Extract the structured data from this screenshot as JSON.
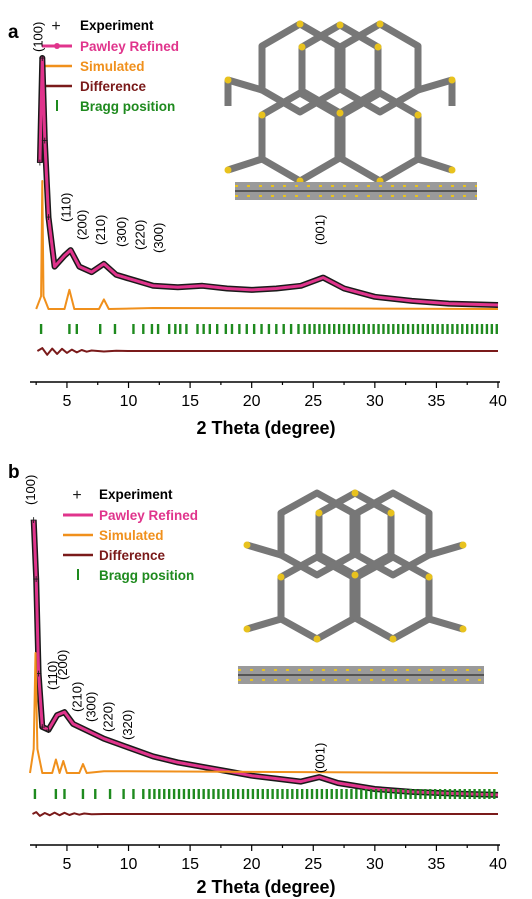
{
  "colors": {
    "experiment": "#1a1a1a",
    "pawley": "#e0348c",
    "simulated": "#f0901c",
    "difference": "#7a1a1a",
    "bragg": "#1e8a1e"
  },
  "legend": {
    "experiment": "Experiment",
    "pawley": "Pawley Refined",
    "simulated": "Simulated",
    "difference": "Difference",
    "bragg": "Bragg position"
  },
  "xlabel": "2 Theta (degree)",
  "chart_data": [
    {
      "panel": "a",
      "type": "line",
      "xlabel": "2 Theta (degree)",
      "xlim": [
        2,
        40
      ],
      "x_ticks": [
        "5",
        "10",
        "15",
        "20",
        "25",
        "30",
        "35",
        "40"
      ],
      "peak_labels": [
        "(100)",
        "(110)",
        "(200)",
        "(210)",
        "(300)",
        "(220)",
        "(300)",
        "(001)"
      ],
      "series": [
        {
          "name": "Experiment",
          "x": [
            2.8,
            3.0,
            3.2,
            3.5,
            4.0,
            4.8,
            5.3,
            6.0,
            7.0,
            8.0,
            9.0,
            10.5,
            12.0,
            14.0,
            16.0,
            18.0,
            20.0,
            22.0,
            24.0,
            25.8,
            27.5,
            30.0,
            33.0,
            36.0,
            40.0
          ],
          "y": [
            62,
            100,
            70,
            42,
            24,
            28,
            30,
            24,
            22,
            25,
            21,
            19,
            17,
            16.5,
            17,
            16,
            15.5,
            16,
            17,
            20,
            16,
            13,
            11.5,
            10.5,
            10
          ]
        },
        {
          "name": "Pawley Refined",
          "x": [
            2.8,
            3.0,
            3.2,
            3.5,
            4.0,
            4.8,
            5.3,
            6.0,
            7.0,
            8.0,
            9.0,
            10.5,
            12.0,
            14.0,
            16.0,
            18.0,
            20.0,
            22.0,
            24.0,
            25.8,
            27.5,
            30.0,
            33.0,
            36.0,
            40.0
          ],
          "y": [
            62,
            100,
            70,
            42,
            24,
            28,
            30,
            24,
            22,
            25,
            21,
            19,
            17,
            16.5,
            17,
            16,
            15.5,
            16,
            17,
            20,
            16,
            13,
            11.5,
            10.5,
            10
          ]
        },
        {
          "name": "Simulated",
          "x": [
            2.5,
            2.9,
            3.0,
            3.1,
            3.5,
            4.8,
            5.2,
            5.6,
            7.6,
            8.0,
            8.4,
            12.0,
            40.0
          ],
          "y": [
            0,
            4,
            40,
            4,
            0,
            0,
            6,
            0,
            0,
            3,
            0,
            0.3,
            0
          ]
        },
        {
          "name": "Difference",
          "x": [
            2.6,
            3.0,
            3.4,
            3.8,
            4.2,
            4.6,
            5.0,
            5.4,
            5.8,
            6.2,
            6.6,
            7.0,
            8.0,
            9.0,
            10.0,
            40.0
          ],
          "y": [
            0,
            1.2,
            -1.6,
            1.0,
            -1.2,
            0.9,
            -0.8,
            0.6,
            -0.6,
            0.4,
            -0.3,
            0.2,
            -0.2,
            0.1,
            0,
            0
          ]
        }
      ]
    },
    {
      "panel": "b",
      "type": "line",
      "xlabel": "2 Theta (degree)",
      "xlim": [
        2,
        40
      ],
      "x_ticks": [
        "5",
        "10",
        "15",
        "20",
        "25",
        "30",
        "35",
        "40"
      ],
      "peak_labels": [
        "(100)",
        "(110)",
        "(200)",
        "(210)",
        "(300)",
        "(220)",
        "(320)",
        "(001)"
      ],
      "series": [
        {
          "name": "Experiment",
          "x": [
            2.3,
            2.5,
            2.7,
            3.0,
            3.5,
            4.2,
            4.8,
            5.5,
            6.5,
            8.0,
            10.0,
            12.0,
            14.0,
            16.0,
            18.0,
            20.0,
            22.0,
            24.0,
            25.5,
            27.0,
            30.0,
            33.0,
            36.0,
            40.0
          ],
          "y": [
            100,
            80,
            48,
            30,
            29,
            34,
            35,
            31,
            29,
            26,
            23,
            20,
            18,
            16.5,
            15,
            13.5,
            12.5,
            11.5,
            13,
            11,
            9,
            8,
            7.5,
            7
          ]
        },
        {
          "name": "Pawley Refined",
          "x": [
            2.3,
            2.5,
            2.7,
            3.0,
            3.5,
            4.2,
            4.8,
            5.5,
            6.5,
            8.0,
            10.0,
            12.0,
            14.0,
            16.0,
            18.0,
            20.0,
            22.0,
            24.0,
            25.5,
            27.0,
            30.0,
            33.0,
            36.0,
            40.0
          ],
          "y": [
            100,
            80,
            48,
            30,
            29,
            34,
            35,
            31,
            29,
            26,
            23,
            20,
            18,
            16.5,
            15,
            13.5,
            12.5,
            11.5,
            13,
            11,
            9,
            8,
            7.5,
            7
          ]
        },
        {
          "name": "Simulated",
          "x": [
            2.0,
            2.3,
            2.45,
            2.6,
            3.0,
            3.8,
            4.1,
            4.4,
            4.7,
            5.0,
            5.3,
            6.0,
            6.3,
            6.6,
            8.0,
            40.0
          ],
          "y": [
            0,
            8,
            40,
            8,
            0,
            0,
            4.5,
            0,
            4.0,
            0,
            0,
            0,
            3,
            0,
            0.6,
            0
          ]
        },
        {
          "name": "Difference",
          "x": [
            2.2,
            2.5,
            2.8,
            3.2,
            3.6,
            4.0,
            4.4,
            4.8,
            5.2,
            5.6,
            6.0,
            6.4,
            7.0,
            8.0,
            40.0
          ],
          "y": [
            0,
            0.8,
            -0.8,
            0.4,
            -0.5,
            0.6,
            -0.5,
            0.5,
            -0.4,
            0.3,
            -0.3,
            0.2,
            -0.1,
            0,
            0
          ]
        }
      ]
    }
  ]
}
